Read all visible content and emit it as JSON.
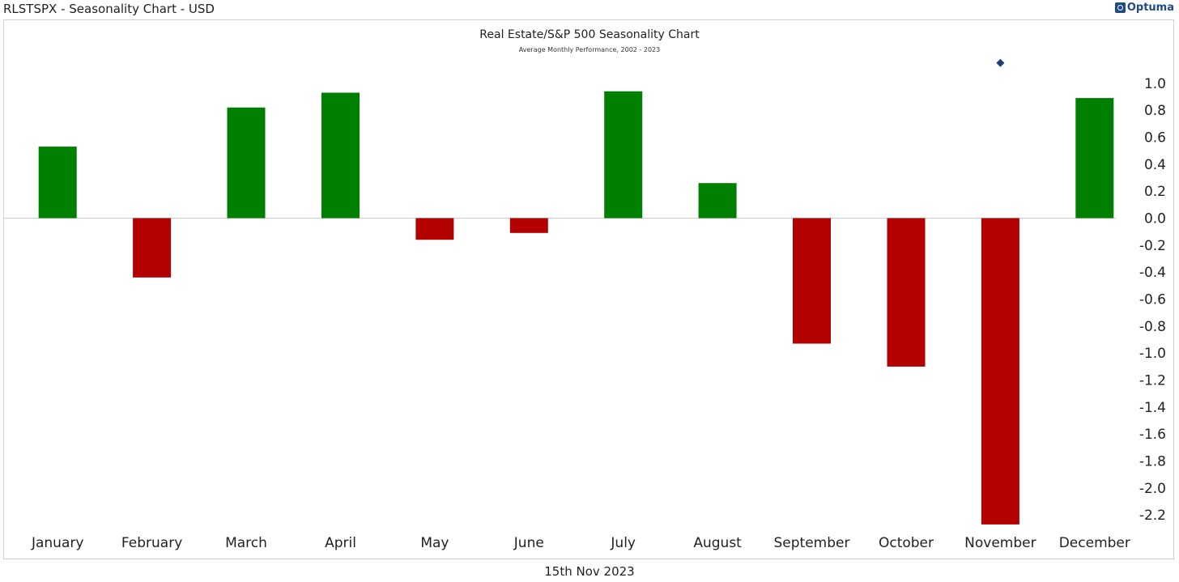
{
  "header": {
    "title": "RLSTSPX - Seasonality Chart - USD",
    "brand": "Optuma"
  },
  "footer": {
    "date": "15th Nov 2023"
  },
  "colors": {
    "positive": "#008000",
    "negative": "#b30000",
    "marker": "#1e3f78"
  },
  "chart_data": {
    "type": "bar",
    "title": "Real Estate/S&P 500 Seasonality Chart",
    "subtitle": "Average Monthly Performance, 2002 - 2023",
    "categories": [
      "January",
      "February",
      "March",
      "April",
      "May",
      "June",
      "July",
      "August",
      "September",
      "October",
      "November",
      "December"
    ],
    "values": [
      0.53,
      -0.44,
      0.82,
      0.93,
      -0.16,
      -0.11,
      0.94,
      0.26,
      -0.93,
      -1.1,
      -2.27,
      0.89
    ],
    "current_marker": {
      "category": "November",
      "value": 1.15
    },
    "ylim": [
      -2.3,
      1.2
    ],
    "yticks": [
      "1.0",
      "0.8",
      "0.6",
      "0.4",
      "0.2",
      "0.0",
      "-0.2",
      "-0.4",
      "-0.6",
      "-0.8",
      "-1.0",
      "-1.2",
      "-1.4",
      "-1.6",
      "-1.8",
      "-2.0",
      "-2.2"
    ],
    "ytick_values": [
      1.0,
      0.8,
      0.6,
      0.4,
      0.2,
      0.0,
      -0.2,
      -0.4,
      -0.6,
      -0.8,
      -1.0,
      -1.2,
      -1.4,
      -1.6,
      -1.8,
      -2.0,
      -2.2
    ],
    "y_axis_side": "right",
    "grid": false,
    "legend": "none"
  }
}
